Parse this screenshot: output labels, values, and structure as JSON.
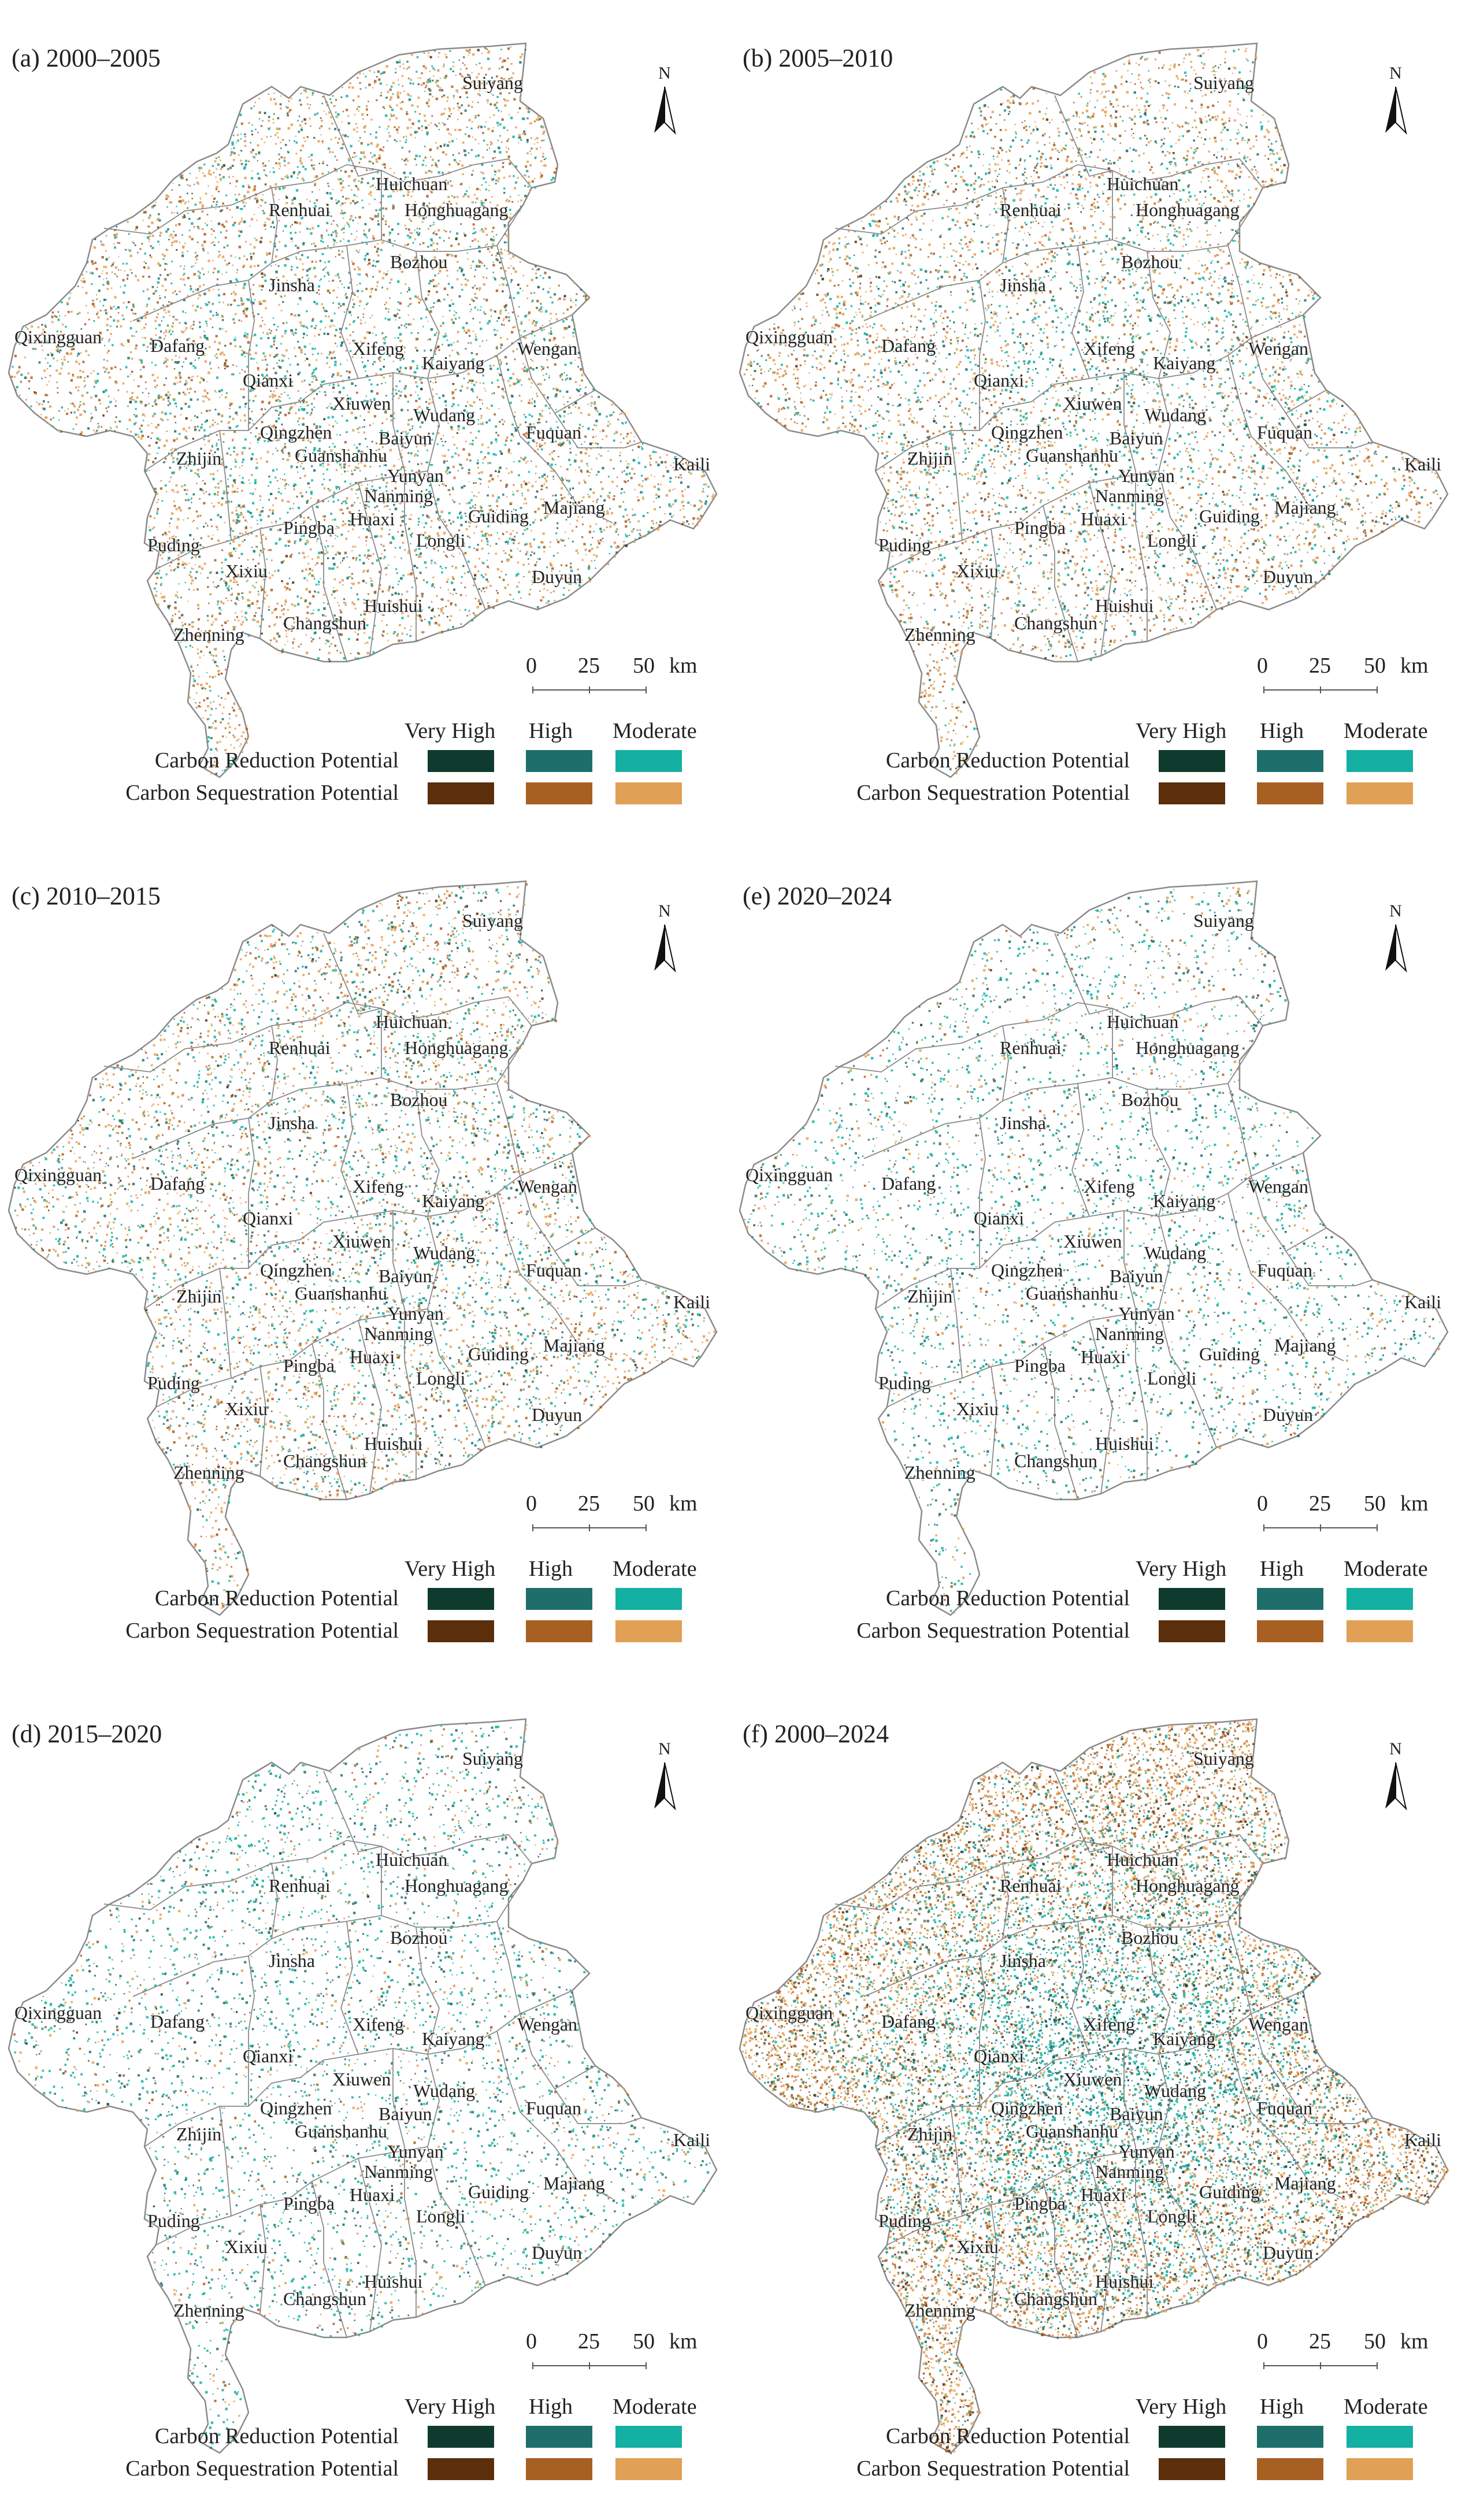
{
  "legend": {
    "levels": [
      "Very High",
      "High",
      "Moderate"
    ],
    "rows": [
      {
        "label": "Carbon Reduction Potential",
        "colors": [
          "#0f3b2e",
          "#1e6f6c",
          "#14b0a2"
        ]
      },
      {
        "label": "Carbon Sequestration Potential",
        "colors": [
          "#5b2e0c",
          "#a85f22",
          "#e0a055"
        ]
      }
    ]
  },
  "scale_bar": {
    "ticks": [
      "0",
      "25",
      "50"
    ],
    "unit": "km"
  },
  "north_label": "N",
  "places": [
    "Suiyang",
    "Huichuan",
    "Renhuai",
    "Honghuagang",
    "Bozhou",
    "Jinsha",
    "Qixingguan",
    "Dafang",
    "Xifeng",
    "Kaiyang",
    "Wengan",
    "Qianxi",
    "Xiuwen",
    "Wudang",
    "Qingzhen",
    "Baiyun",
    "Fuquan",
    "Zhijin",
    "Guanshanhu",
    "Yunyan",
    "Kaili",
    "Nanming",
    "Huaxi",
    "Guiding",
    "Majiang",
    "Pingba",
    "Longli",
    "Puding",
    "Xixiu",
    "Duyun",
    "Huishui",
    "Changshun",
    "Zhenning"
  ],
  "colors": {
    "outline": "#8a8a8a",
    "background": "#ffffff"
  },
  "panels": [
    {
      "id": "a",
      "label": "(a) 2000–2005",
      "intensity": "moderate",
      "dominant": "mixed orange and teal, more orange in east and north"
    },
    {
      "id": "b",
      "label": "(b) 2005–2010",
      "intensity": "moderate",
      "dominant": "mixed, orange in north"
    },
    {
      "id": "c",
      "label": "(c) 2010–2015",
      "intensity": "moderate",
      "dominant": "mixed, orange in southwest"
    },
    {
      "id": "e",
      "label": "(e) 2020–2024",
      "intensity": "low",
      "dominant": "sparse teal"
    },
    {
      "id": "d",
      "label": "(d) 2015–2020",
      "intensity": "low",
      "dominant": "sparse teal"
    },
    {
      "id": "f",
      "label": "(f) 2000–2024",
      "intensity": "high",
      "dominant": "dense teal in center, dense orange at edges"
    }
  ]
}
